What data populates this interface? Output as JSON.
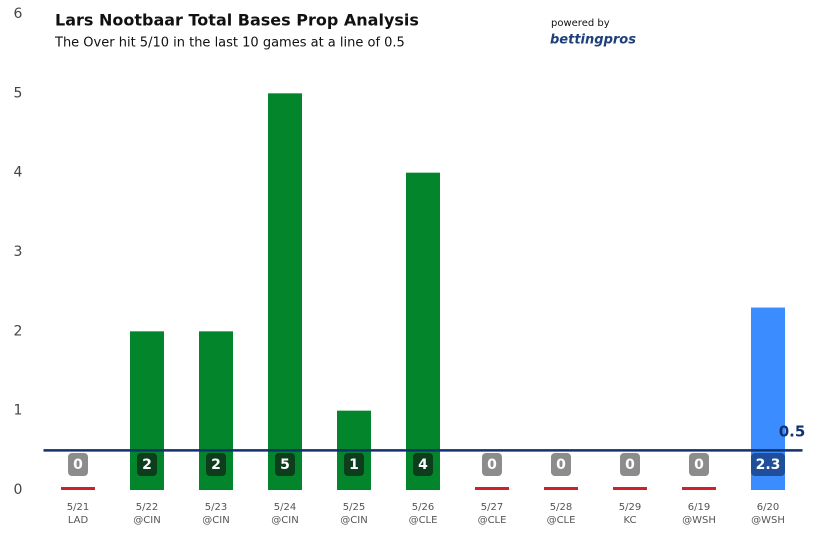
{
  "chart_data": {
    "type": "bar",
    "title": "Lars Nootbaar Total Bases Prop Analysis",
    "subtitle": "The Over hit 5/10 in the last 10 games at a line of 0.5",
    "brand_caption": "powered by",
    "brand": "bettingpros",
    "categories": [
      "5/21",
      "5/22",
      "5/23",
      "5/24",
      "5/25",
      "5/26",
      "5/27",
      "5/28",
      "5/29",
      "6/19",
      "6/20"
    ],
    "opponents": [
      "LAD",
      "@CIN",
      "@CIN",
      "@CIN",
      "@CIN",
      "@CLE",
      "@CLE",
      "@CLE",
      "KC",
      "@WSH",
      "@WSH"
    ],
    "values": [
      0,
      2,
      2,
      5,
      1,
      4,
      0,
      0,
      0,
      0,
      2.3
    ],
    "colors": [
      "#d0202a",
      "#03862b",
      "#03862b",
      "#03862b",
      "#03862b",
      "#03862b",
      "#d0202a",
      "#d0202a",
      "#d0202a",
      "#d0202a",
      "#3b8cff"
    ],
    "label_colors": [
      "#8c8c8c",
      "#0d3d1c",
      "#0d3d1c",
      "#0d3d1c",
      "#0d3d1c",
      "#0d3d1c",
      "#8c8c8c",
      "#8c8c8c",
      "#8c8c8c",
      "#8c8c8c",
      "#1f4e9a"
    ],
    "prop_line": 0.5,
    "prop_line_color": "#13306e",
    "ylim": [
      0,
      6
    ],
    "yticks": [
      0,
      1,
      2,
      3,
      4,
      5,
      6
    ]
  }
}
